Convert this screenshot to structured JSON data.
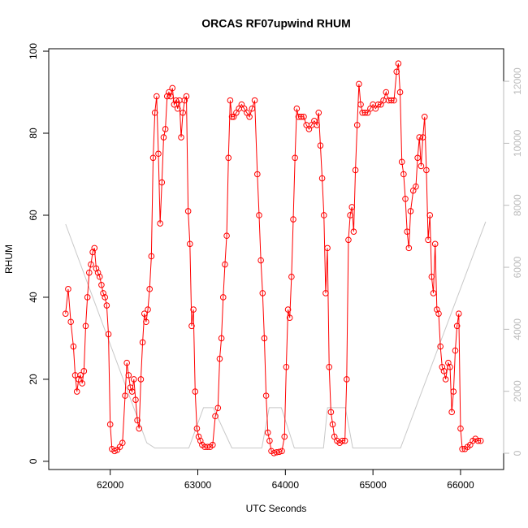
{
  "chart_data": {
    "type": "line",
    "title": "ORCAS RF07upwind RHUM",
    "xlabel": "UTC Seconds",
    "ylabel": "RHUM",
    "xlim": [
      61298,
      66492
    ],
    "xticks": [
      62000,
      63000,
      64000,
      65000,
      66000
    ],
    "ylim": [
      -2,
      100.6
    ],
    "yticks": [
      0,
      20,
      40,
      60,
      80,
      100
    ],
    "y2lim": [
      -524,
      13050
    ],
    "y2ticks": [
      0,
      2000,
      4000,
      6000,
      8000,
      10000,
      12000
    ],
    "y2color": "#bbbbbb",
    "series": [
      {
        "color": "#ff0000",
        "markers": true,
        "x": [
          61490,
          61520,
          61550,
          61580,
          61600,
          61620,
          61640,
          61660,
          61680,
          61700,
          61720,
          61740,
          61760,
          61780,
          61800,
          61820,
          61840,
          61860,
          61880,
          61900,
          61920,
          61940,
          61960,
          61980,
          62000,
          62020,
          62050,
          62080,
          62110,
          62140,
          62170,
          62190,
          62210,
          62230,
          62250,
          62270,
          62290,
          62310,
          62330,
          62350,
          62370,
          62390,
          62410,
          62430,
          62450,
          62470,
          62490,
          62510,
          62530,
          62550,
          62570,
          62590,
          62610,
          62630,
          62650,
          62670,
          62690,
          62710,
          62730,
          62750,
          62770,
          62790,
          62810,
          62830,
          62850,
          62870,
          62890,
          62910,
          62930,
          62950,
          62970,
          62990,
          63010,
          63030,
          63050,
          63080,
          63110,
          63140,
          63170,
          63200,
          63230,
          63250,
          63270,
          63290,
          63310,
          63330,
          63350,
          63370,
          63390,
          63410,
          63440,
          63470,
          63500,
          63530,
          63560,
          63590,
          63620,
          63650,
          63680,
          63700,
          63720,
          63740,
          63760,
          63780,
          63800,
          63820,
          63840,
          63870,
          63900,
          63930,
          63960,
          63990,
          64010,
          64030,
          64050,
          64070,
          64090,
          64110,
          64130,
          64150,
          64180,
          64210,
          64240,
          64270,
          64300,
          64330,
          64360,
          64380,
          64400,
          64420,
          64440,
          64460,
          64480,
          64500,
          64520,
          64540,
          64560,
          64590,
          64620,
          64650,
          64680,
          64700,
          64720,
          64740,
          64760,
          64780,
          64800,
          64820,
          64840,
          64860,
          64880,
          64910,
          64940,
          64970,
          65000,
          65030,
          65060,
          65090,
          65120,
          65150,
          65180,
          65210,
          65240,
          65270,
          65290,
          65310,
          65330,
          65350,
          65370,
          65390,
          65410,
          65430,
          65460,
          65490,
          65510,
          65530,
          65550,
          65570,
          65590,
          65610,
          65630,
          65650,
          65670,
          65690,
          65710,
          65730,
          65750,
          65770,
          65790,
          65810,
          65830,
          65860,
          65880,
          65900,
          65920,
          65940,
          65960,
          65980,
          66000,
          66020,
          66050,
          66080,
          66110,
          66140,
          66170,
          66200,
          66230
        ],
        "values": [
          36,
          42,
          34,
          28,
          21,
          17,
          20,
          21,
          19,
          22,
          33,
          40,
          46,
          48,
          51,
          52,
          47,
          46,
          45,
          43,
          41,
          40,
          38,
          31,
          9,
          3,
          2.5,
          2.8,
          3.5,
          4.5,
          16,
          24,
          21,
          18,
          17,
          20,
          15,
          10,
          8,
          20,
          29,
          36,
          34,
          37,
          42,
          50,
          74,
          85,
          89,
          75,
          58,
          68,
          79,
          81,
          89,
          90,
          89,
          91,
          87,
          88,
          86,
          88,
          79,
          85,
          88,
          89,
          61,
          53,
          33,
          37,
          17,
          8,
          6,
          5,
          4,
          3.5,
          3.5,
          3.5,
          4,
          11,
          13,
          25,
          30,
          40,
          48,
          55,
          74,
          88,
          84,
          84,
          85,
          86,
          87,
          86,
          85,
          84,
          86,
          88,
          70,
          60,
          49,
          41,
          30,
          16,
          7,
          5,
          2.5,
          2,
          2.2,
          2.3,
          2.5,
          6,
          23,
          37,
          35,
          45,
          59,
          74,
          86,
          84,
          84,
          84,
          82,
          81,
          82,
          83,
          82,
          85,
          77,
          69,
          60,
          41,
          52,
          23,
          12,
          9,
          6,
          5,
          4.5,
          5,
          5,
          20,
          54,
          60,
          62,
          56,
          71,
          82,
          92,
          87,
          85,
          85,
          85,
          86,
          87,
          86,
          87,
          87,
          88,
          90,
          88,
          88,
          88,
          95,
          97,
          90,
          73,
          70,
          64,
          56,
          52,
          61,
          66,
          67,
          74,
          79,
          72,
          79,
          84,
          71,
          54,
          60,
          45,
          41,
          53,
          37,
          36,
          28,
          23,
          22,
          20,
          24,
          23,
          12,
          17,
          27,
          33,
          36,
          8,
          3,
          3,
          3.5,
          4,
          5,
          5.5,
          5,
          5
        ]
      },
      {
        "color": "#c8c8c8",
        "axis": "y2",
        "markers": false,
        "x": [
          61491,
          62417,
          62509,
          62898,
          63065,
          63176,
          63389,
          63731,
          63815,
          63954,
          64102,
          64435,
          64481,
          64685,
          64769,
          65315,
          66287
        ],
        "values": [
          7390,
          340,
          170,
          170,
          1470,
          1470,
          170,
          170,
          1470,
          1470,
          170,
          170,
          1470,
          1470,
          170,
          170,
          7470
        ]
      }
    ]
  }
}
